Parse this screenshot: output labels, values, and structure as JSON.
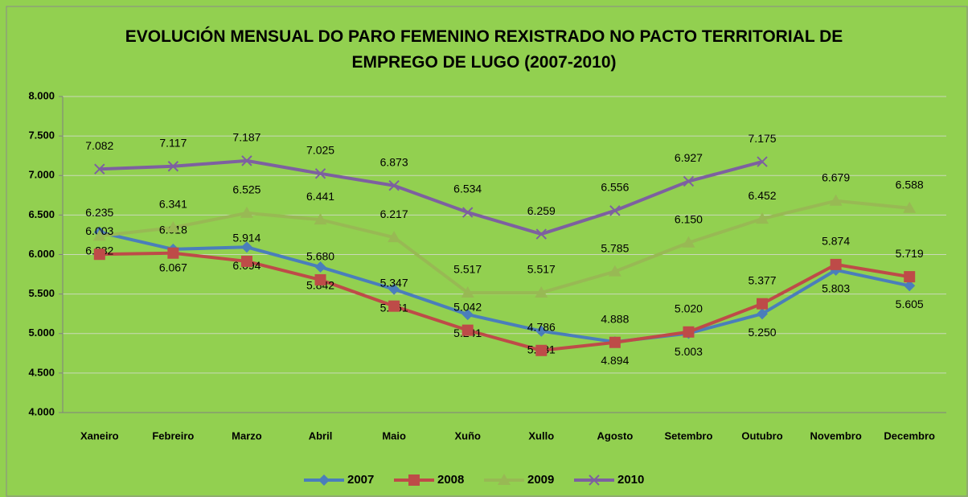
{
  "chart_data": {
    "type": "line",
    "title": "EVOLUCIÓN MENSUAL DO PARO FEMENINO REXISTRADO NO PACTO TERRITORIAL DE EMPREGO DE LUGO (2007-2010)",
    "categories": [
      "Xaneiro",
      "Febreiro",
      "Marzo",
      "Abril",
      "Maio",
      "Xuño",
      "Xullo",
      "Agosto",
      "Setembro",
      "Outubro",
      "Novembro",
      "Decembro"
    ],
    "ylim": [
      4000,
      8000
    ],
    "yticks": [
      {
        "value": 4000,
        "label": "4.000"
      },
      {
        "value": 4500,
        "label": "4.500"
      },
      {
        "value": 5000,
        "label": "5.000"
      },
      {
        "value": 5500,
        "label": "5.500"
      },
      {
        "value": 6000,
        "label": "6.000"
      },
      {
        "value": 6500,
        "label": "6.500"
      },
      {
        "value": 7000,
        "label": "7.000"
      },
      {
        "value": 7500,
        "label": "7.500"
      },
      {
        "value": 8000,
        "label": "8.000"
      }
    ],
    "grid": true,
    "legend": "bottom",
    "series": [
      {
        "name": "2007",
        "color": "#4a7ebb",
        "marker": "diamond",
        "values": [
          6282,
          6067,
          6094,
          5842,
          5561,
          5241,
          5031,
          4894,
          5003,
          5250,
          5803,
          5605
        ],
        "value_labels": [
          "6.282",
          "6.067",
          "6.094",
          "5.842",
          "5.561",
          "5.241",
          "5.031",
          "4.894",
          "5.003",
          "5.250",
          "5.803",
          "5.605"
        ]
      },
      {
        "name": "2008",
        "color": "#be4b48",
        "marker": "square",
        "values": [
          6003,
          6018,
          5914,
          5680,
          5347,
          5042,
          4786,
          4888,
          5020,
          5377,
          5874,
          5719
        ],
        "value_labels": [
          "6.003",
          "6.018",
          "5.914",
          "5.680",
          "5.347",
          "5.042",
          "4.786",
          "4.888",
          "5.020",
          "5.377",
          "5.874",
          "5.719"
        ]
      },
      {
        "name": "2009",
        "color": "#98b954",
        "marker": "triangle",
        "values": [
          6235,
          6341,
          6525,
          6441,
          6217,
          5517,
          5517,
          5785,
          6150,
          6452,
          6679,
          6588
        ],
        "value_labels": [
          "6.235",
          "6.341",
          "6.525",
          "6.441",
          "6.217",
          "5.517",
          "5.517",
          "5.785",
          "6.150",
          "6.452",
          "6.679",
          "6.588"
        ]
      },
      {
        "name": "2010",
        "color": "#7d60a0",
        "marker": "x",
        "values": [
          7082,
          7117,
          7187,
          7025,
          6873,
          6534,
          6259,
          6556,
          6927,
          7175,
          null,
          null
        ],
        "value_labels": [
          "7.082",
          "7.117",
          "7.187",
          "7.025",
          "6.873",
          "6.534",
          "6.259",
          "6.556",
          "6.927",
          "7.175",
          null,
          null
        ]
      }
    ]
  }
}
